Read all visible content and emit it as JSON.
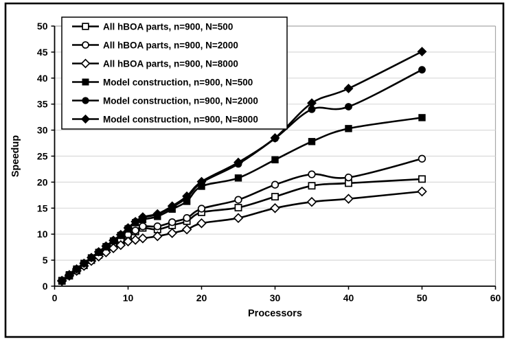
{
  "figure": {
    "background": "#ffffff",
    "outer_border_color": "#000000"
  },
  "colors": {
    "series_line": "#000000",
    "gridline": "#d9d9d9",
    "plot_frame": "#a6a6a6",
    "axis": "#000000",
    "legend_border": "#000000",
    "legend_fill": "#ffffff",
    "text": "#000000"
  },
  "chart_data": {
    "type": "line",
    "title": "",
    "xlabel": "Processors",
    "ylabel": "Speedup",
    "xlim": [
      0,
      60
    ],
    "ylim": [
      0,
      50
    ],
    "x_ticks": [
      0,
      10,
      20,
      30,
      40,
      50,
      60
    ],
    "y_ticks": [
      0,
      5,
      10,
      15,
      20,
      25,
      30,
      35,
      40,
      45,
      50
    ],
    "grid": "horizontal",
    "legend_position": "top-left",
    "x": [
      1,
      2,
      3,
      4,
      5,
      6,
      7,
      8,
      9,
      10,
      11,
      12,
      14,
      16,
      18,
      20,
      25,
      30,
      35,
      40,
      50
    ],
    "series": [
      {
        "name": "All hBOA parts, n=900, N=500",
        "marker": "open-square",
        "values": [
          1.0,
          2.0,
          3.0,
          4.0,
          5.0,
          6.0,
          7.0,
          8.0,
          8.8,
          9.7,
          10.5,
          11.2,
          10.9,
          11.7,
          12.5,
          14.2,
          15.1,
          17.2,
          19.3,
          19.8,
          20.6
        ]
      },
      {
        "name": "All hBOA parts, n=900, N=2000",
        "marker": "open-circle",
        "values": [
          1.05,
          2.05,
          3.05,
          4.1,
          5.1,
          6.1,
          7.1,
          8.1,
          8.9,
          9.9,
          10.7,
          11.5,
          11.5,
          12.3,
          13.1,
          14.9,
          16.6,
          19.5,
          21.5,
          20.9,
          24.5
        ]
      },
      {
        "name": "All hBOA parts, n=900, N=8000",
        "marker": "open-diamond",
        "values": [
          1.0,
          2.0,
          2.95,
          3.9,
          4.85,
          5.7,
          6.5,
          7.3,
          7.9,
          8.6,
          8.9,
          9.2,
          9.6,
          10.2,
          10.9,
          12.1,
          13.1,
          15.0,
          16.2,
          16.8,
          18.2
        ]
      },
      {
        "name": "Model construction, n=900, N=500",
        "marker": "filled-square",
        "values": [
          1.1,
          2.2,
          3.3,
          4.4,
          5.45,
          6.5,
          7.6,
          8.7,
          9.75,
          11.0,
          12.2,
          12.8,
          13.4,
          14.8,
          16.3,
          19.2,
          20.8,
          24.3,
          27.8,
          30.3,
          32.4
        ]
      },
      {
        "name": "Model construction, n=900, N=2000",
        "marker": "filled-circle",
        "values": [
          1.1,
          2.2,
          3.3,
          4.4,
          5.5,
          6.6,
          7.7,
          8.8,
          9.9,
          11.2,
          12.4,
          13.2,
          13.8,
          15.2,
          17.0,
          19.9,
          23.5,
          28.4,
          34.0,
          34.5,
          41.6
        ]
      },
      {
        "name": "Model construction, n=900, N=8000",
        "marker": "filled-diamond",
        "values": [
          1.1,
          2.2,
          3.3,
          4.4,
          5.5,
          6.6,
          7.7,
          8.8,
          9.9,
          11.2,
          12.4,
          13.3,
          13.9,
          15.4,
          17.3,
          20.1,
          23.8,
          28.5,
          35.2,
          38.0,
          45.1
        ]
      }
    ]
  }
}
